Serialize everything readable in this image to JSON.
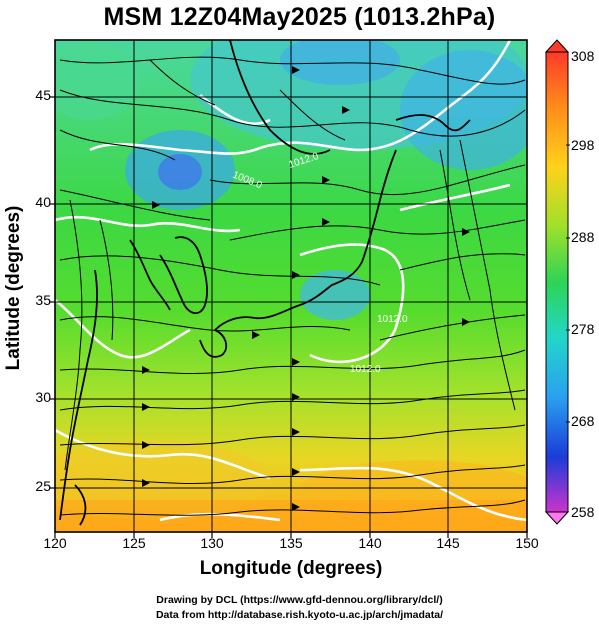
{
  "title": "MSM 12Z04May2025 (1013.2hPa)",
  "xlabel": "Longitude (degrees)",
  "ylabel": "Latitude  (degrees)",
  "x_ticks": [
    "120",
    "125",
    "130",
    "135",
    "140",
    "145",
    "150"
  ],
  "y_ticks": [
    "25",
    "30",
    "35",
    "40",
    "45"
  ],
  "colorbar_ticks": [
    "308",
    "298",
    "288",
    "278",
    "268",
    "258"
  ],
  "contour_labels": [
    "1008.0",
    "1012.0",
    "1012.0",
    "1012.0"
  ],
  "credits": {
    "line1": "Drawing by DCL (https://www.gfd-dennou.org/library/dcl/)",
    "line2": "Data from http://database.rish.kyoto-u.ac.jp/arch/jmadata/"
  },
  "map": {
    "lon_range": [
      120,
      150
    ],
    "lat_range": [
      22.5,
      47.5
    ],
    "value_range": [
      258,
      308
    ],
    "grid": true,
    "colormap": [
      "#cc33cc",
      "#1b3cd8",
      "#2aa0f0",
      "#22d6c8",
      "#2ed454",
      "#9ee02c",
      "#ffd21a",
      "#ff8c1a",
      "#ff3a2a"
    ]
  }
}
